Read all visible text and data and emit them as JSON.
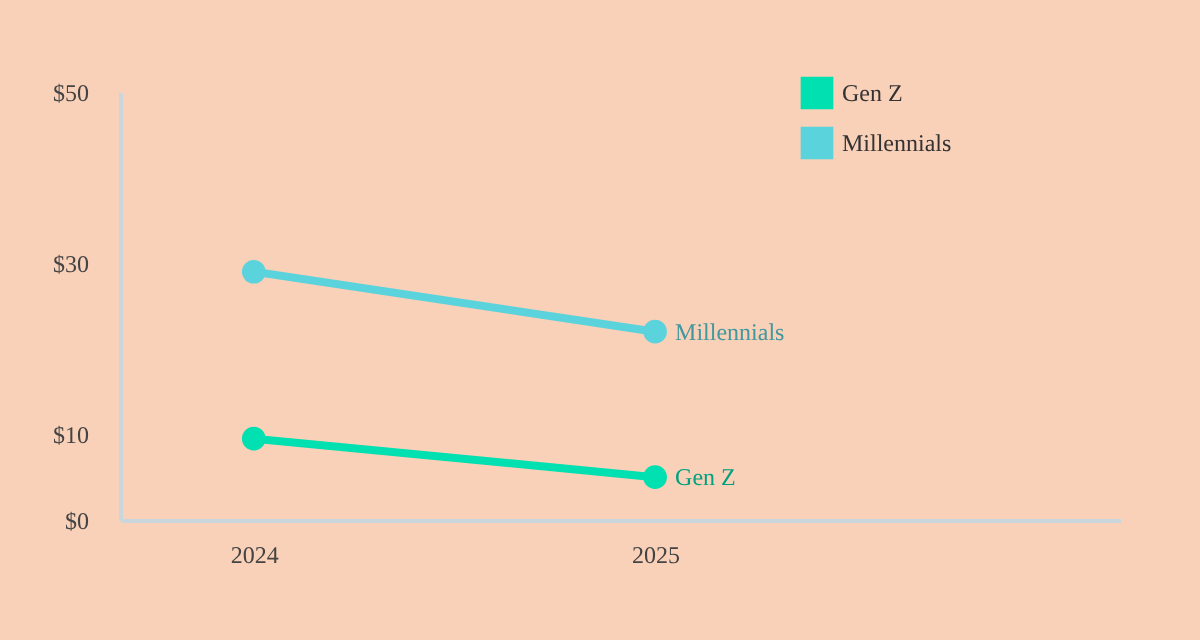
{
  "chart_data": {
    "type": "line",
    "x": [
      "2024",
      "2025"
    ],
    "xlim": [
      "2023-09",
      "2026-03"
    ],
    "xticks": [
      "2024",
      "2025"
    ],
    "ylim": [
      0,
      50
    ],
    "yticks": [
      {
        "value": 0,
        "label": "$0"
      },
      {
        "value": 10,
        "label": "$10"
      },
      {
        "value": 30,
        "label": "$30"
      },
      {
        "value": 50,
        "label": "$50"
      }
    ],
    "series": [
      {
        "name": "Gen Z",
        "color": "#00e0b0",
        "values": [
          9.5,
          5
        ]
      },
      {
        "name": "Millennials",
        "color": "#5bd3dc",
        "values": [
          29,
          22
        ]
      }
    ],
    "marker": "circle",
    "line_style": "solid",
    "grid": false,
    "legend": "top right"
  }
}
